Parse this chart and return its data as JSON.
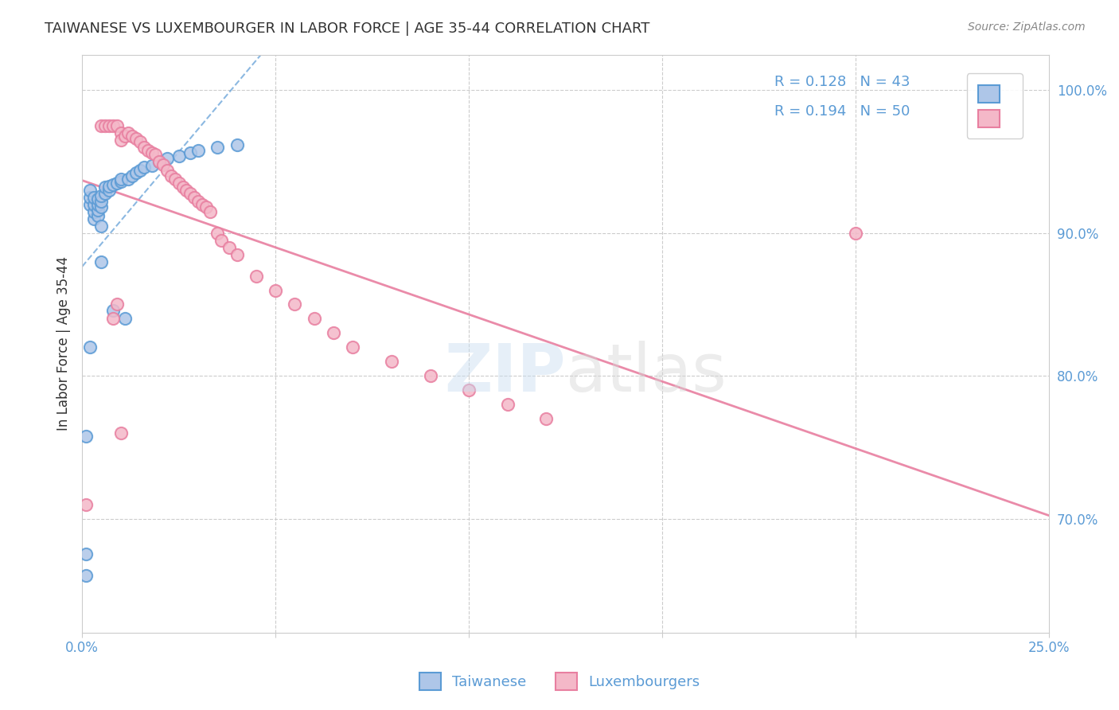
{
  "title": "TAIWANESE VS LUXEMBOURGER IN LABOR FORCE | AGE 35-44 CORRELATION CHART",
  "source": "Source: ZipAtlas.com",
  "ylabel": "In Labor Force | Age 35-44",
  "xlim": [
    0.0,
    0.25
  ],
  "ylim": [
    0.62,
    1.025
  ],
  "xticks": [
    0.0,
    0.05,
    0.1,
    0.15,
    0.2,
    0.25
  ],
  "xtick_labels": [
    "0.0%",
    "",
    "",
    "",
    "",
    "25.0%"
  ],
  "ytick_vals_right": [
    0.7,
    0.8,
    0.9,
    1.0
  ],
  "ytick_labels_right": [
    "70.0%",
    "80.0%",
    "90.0%",
    "100.0%"
  ],
  "taiwanese_color": "#aec6e8",
  "luxembourger_color": "#f4b8c8",
  "taiwanese_edge": "#5b9bd5",
  "luxembourger_edge": "#e87fa0",
  "R_taiwanese": 0.128,
  "N_taiwanese": 43,
  "R_luxembourger": 0.194,
  "N_luxembourger": 50,
  "taiwanese_x": [
    0.001,
    0.001,
    0.002,
    0.002,
    0.002,
    0.003,
    0.003,
    0.003,
    0.003,
    0.004,
    0.004,
    0.004,
    0.004,
    0.005,
    0.005,
    0.005,
    0.005,
    0.005,
    0.006,
    0.006,
    0.007,
    0.007,
    0.008,
    0.008,
    0.009,
    0.01,
    0.01,
    0.011,
    0.012,
    0.013,
    0.014,
    0.015,
    0.016,
    0.018,
    0.02,
    0.022,
    0.025,
    0.028,
    0.03,
    0.035,
    0.04,
    0.002,
    0.001
  ],
  "taiwanese_y": [
    0.675,
    0.758,
    0.92,
    0.925,
    0.93,
    0.91,
    0.915,
    0.92,
    0.925,
    0.912,
    0.916,
    0.92,
    0.924,
    0.88,
    0.905,
    0.918,
    0.922,
    0.926,
    0.928,
    0.932,
    0.93,
    0.933,
    0.846,
    0.934,
    0.935,
    0.936,
    0.938,
    0.84,
    0.938,
    0.94,
    0.942,
    0.944,
    0.946,
    0.947,
    0.95,
    0.952,
    0.954,
    0.956,
    0.958,
    0.96,
    0.962,
    0.82,
    0.66
  ],
  "luxembourger_x": [
    0.005,
    0.006,
    0.007,
    0.008,
    0.009,
    0.01,
    0.01,
    0.011,
    0.012,
    0.013,
    0.014,
    0.015,
    0.016,
    0.017,
    0.018,
    0.019,
    0.02,
    0.021,
    0.022,
    0.023,
    0.024,
    0.025,
    0.026,
    0.027,
    0.028,
    0.029,
    0.03,
    0.031,
    0.032,
    0.033,
    0.035,
    0.036,
    0.038,
    0.04,
    0.045,
    0.05,
    0.055,
    0.06,
    0.065,
    0.07,
    0.08,
    0.09,
    0.1,
    0.11,
    0.12,
    0.2,
    0.008,
    0.009,
    0.01,
    0.001
  ],
  "luxembourger_y": [
    0.975,
    0.975,
    0.975,
    0.975,
    0.975,
    0.97,
    0.965,
    0.968,
    0.97,
    0.968,
    0.966,
    0.964,
    0.96,
    0.958,
    0.956,
    0.955,
    0.95,
    0.948,
    0.944,
    0.94,
    0.938,
    0.935,
    0.932,
    0.93,
    0.928,
    0.925,
    0.922,
    0.92,
    0.918,
    0.915,
    0.9,
    0.895,
    0.89,
    0.885,
    0.87,
    0.86,
    0.85,
    0.84,
    0.83,
    0.82,
    0.81,
    0.8,
    0.79,
    0.78,
    0.77,
    0.9,
    0.84,
    0.85,
    0.76,
    0.71
  ]
}
